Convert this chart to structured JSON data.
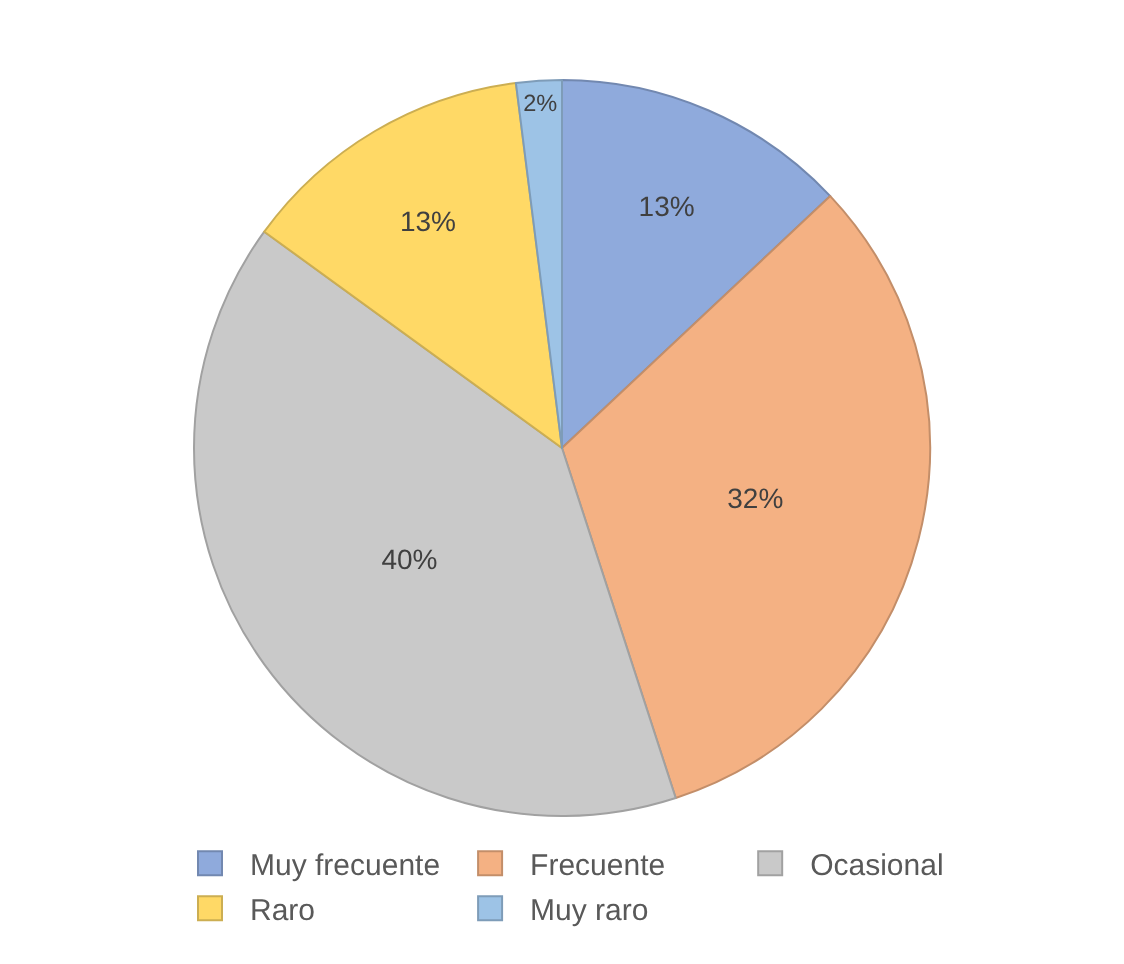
{
  "chart_data": {
    "type": "pie",
    "categories": [
      "Muy frecuente",
      "Frecuente",
      "Ocasional",
      "Raro",
      "Muy raro"
    ],
    "values": [
      13,
      32,
      40,
      13,
      2
    ],
    "value_labels": [
      "13%",
      "32%",
      "40%",
      "13%",
      "2%"
    ],
    "colors": [
      "#8faadc",
      "#f4b183",
      "#c9c9c9",
      "#ffd966",
      "#9dc3e6"
    ],
    "legend": "bottom"
  }
}
